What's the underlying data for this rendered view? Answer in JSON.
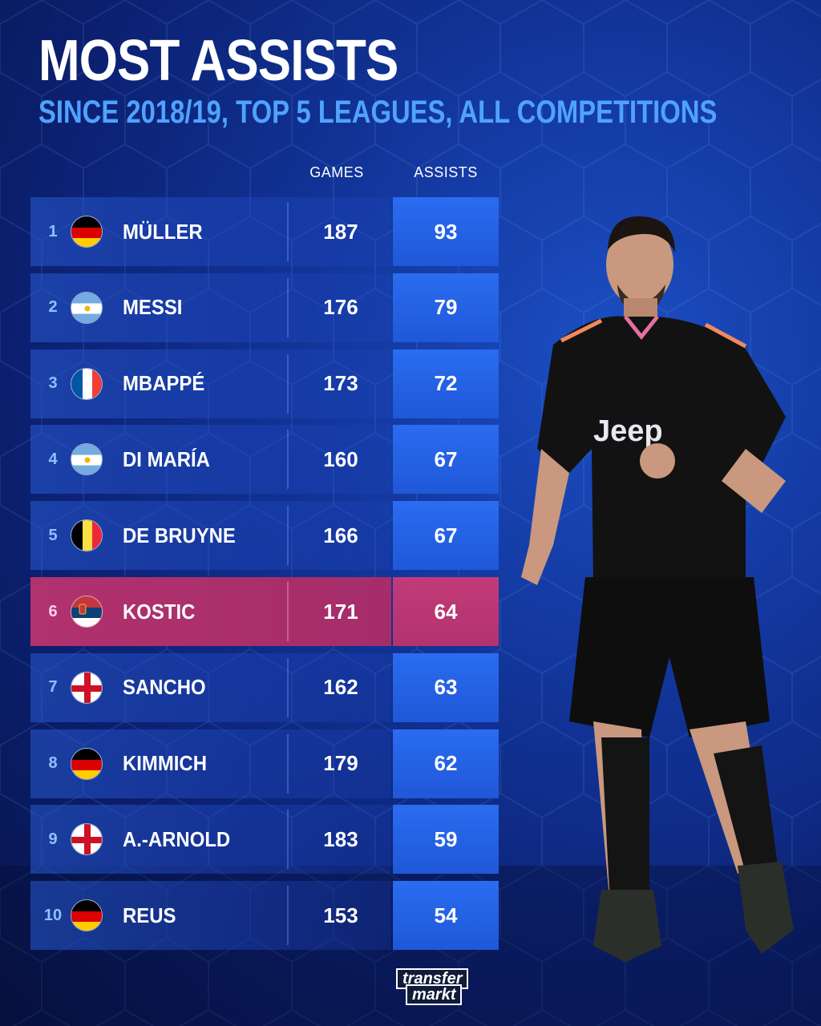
{
  "header": {
    "title": "MOST ASSISTS",
    "subtitle": "SINCE 2018/19, TOP 5 LEAGUES, ALL COMPETITIONS"
  },
  "columns": {
    "games": "GAMES",
    "assists": "ASSISTS"
  },
  "colors": {
    "background": "#12359a",
    "row_left": "#2a58c8",
    "row_assist": "#2a6cf0",
    "highlight": "#b0326e",
    "subtitle": "#4fa3ff"
  },
  "chart_data": {
    "type": "table",
    "title": "MOST ASSISTS",
    "subtitle": "SINCE 2018/19, TOP 5 LEAGUES, ALL COMPETITIONS",
    "columns": [
      "GAMES",
      "ASSISTS"
    ],
    "rows": [
      {
        "rank": "1",
        "flag": "germany-flag-icon",
        "name": "MÜLLER",
        "games": "187",
        "assists": "93",
        "highlight": false
      },
      {
        "rank": "2",
        "flag": "argentina-flag-icon",
        "name": "MESSI",
        "games": "176",
        "assists": "79",
        "highlight": false
      },
      {
        "rank": "3",
        "flag": "france-flag-icon",
        "name": "MBAPPÉ",
        "games": "173",
        "assists": "72",
        "highlight": false
      },
      {
        "rank": "4",
        "flag": "argentina-flag-icon",
        "name": "DI MARÍA",
        "games": "160",
        "assists": "67",
        "highlight": false
      },
      {
        "rank": "5",
        "flag": "belgium-flag-icon",
        "name": "DE BRUYNE",
        "games": "166",
        "assists": "67",
        "highlight": false
      },
      {
        "rank": "6",
        "flag": "serbia-flag-icon",
        "name": "KOSTIC",
        "games": "171",
        "assists": "64",
        "highlight": true
      },
      {
        "rank": "7",
        "flag": "england-flag-icon",
        "name": "SANCHO",
        "games": "162",
        "assists": "63",
        "highlight": false
      },
      {
        "rank": "8",
        "flag": "germany-flag-icon",
        "name": "KIMMICH",
        "games": "179",
        "assists": "62",
        "highlight": false
      },
      {
        "rank": "9",
        "flag": "england-flag-icon",
        "name": "A.-ARNOLD",
        "games": "183",
        "assists": "59",
        "highlight": false
      },
      {
        "rank": "10",
        "flag": "germany-flag-icon",
        "name": "REUS",
        "games": "153",
        "assists": "54",
        "highlight": false
      }
    ]
  },
  "branding": {
    "logo_line1": "transfer",
    "logo_line2": "markt"
  }
}
